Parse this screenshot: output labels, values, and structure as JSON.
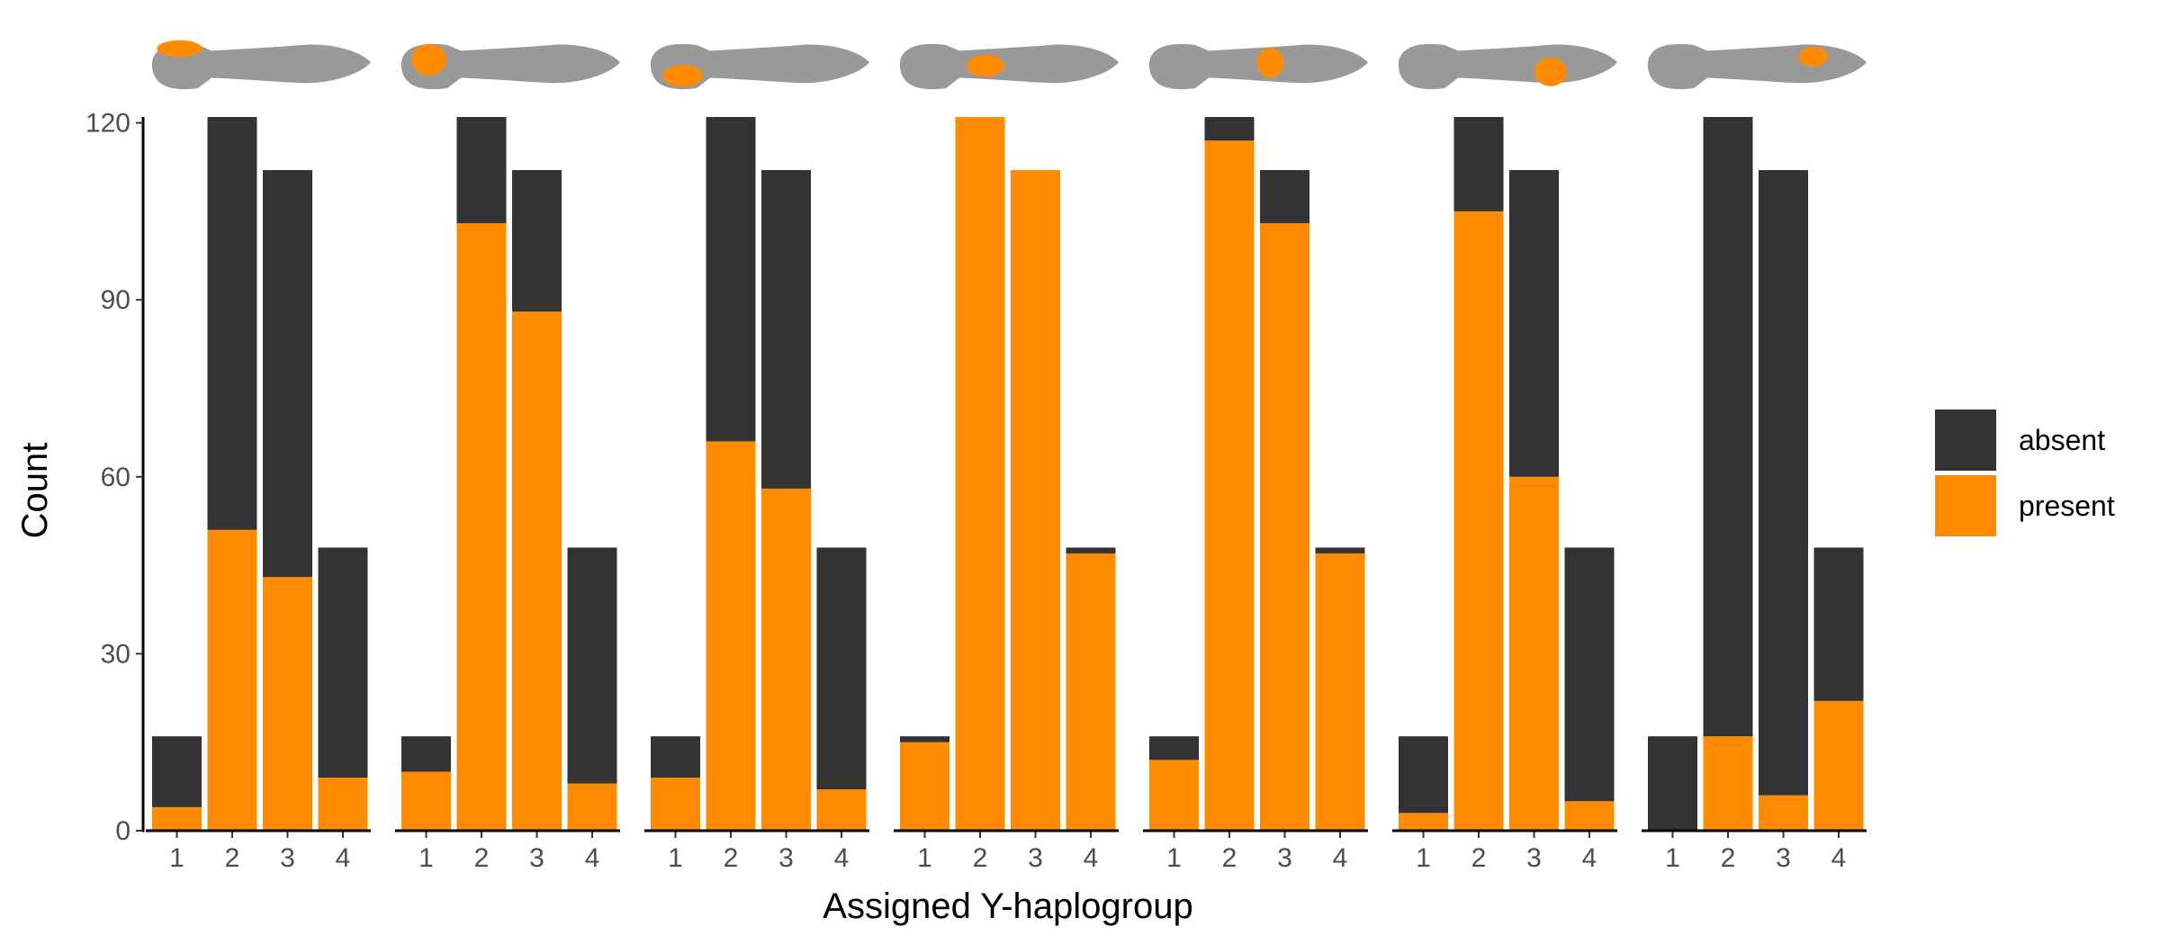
{
  "chart_data": {
    "type": "bar",
    "stacked": true,
    "facet_count": 7,
    "categories": [
      "1",
      "2",
      "3",
      "4"
    ],
    "xlabel": "Assigned Y-haplogroup",
    "ylabel": "Count",
    "ylim": [
      0,
      121
    ],
    "yticks": [
      "0",
      "30",
      "60",
      "90",
      "120"
    ],
    "grid": false,
    "legend_position": "right",
    "series_names": [
      "absent",
      "present"
    ],
    "colors": {
      "absent": "#333333",
      "present": "#ff8c00",
      "fish_body": "#999999"
    },
    "panels": [
      {
        "present": [
          4,
          51,
          43,
          9
        ],
        "absent": [
          12,
          70,
          69,
          39
        ]
      },
      {
        "present": [
          10,
          103,
          88,
          8
        ],
        "absent": [
          6,
          18,
          24,
          40
        ]
      },
      {
        "present": [
          9,
          66,
          58,
          7
        ],
        "absent": [
          7,
          55,
          54,
          41
        ]
      },
      {
        "present": [
          15,
          121,
          112,
          47
        ],
        "absent": [
          1,
          0,
          0,
          1
        ]
      },
      {
        "present": [
          12,
          117,
          103,
          47
        ],
        "absent": [
          4,
          4,
          9,
          1
        ]
      },
      {
        "present": [
          3,
          105,
          60,
          5
        ],
        "absent": [
          13,
          16,
          52,
          43
        ]
      },
      {
        "present": [
          0,
          16,
          6,
          22
        ],
        "absent": [
          16,
          105,
          106,
          26
        ]
      }
    ]
  }
}
